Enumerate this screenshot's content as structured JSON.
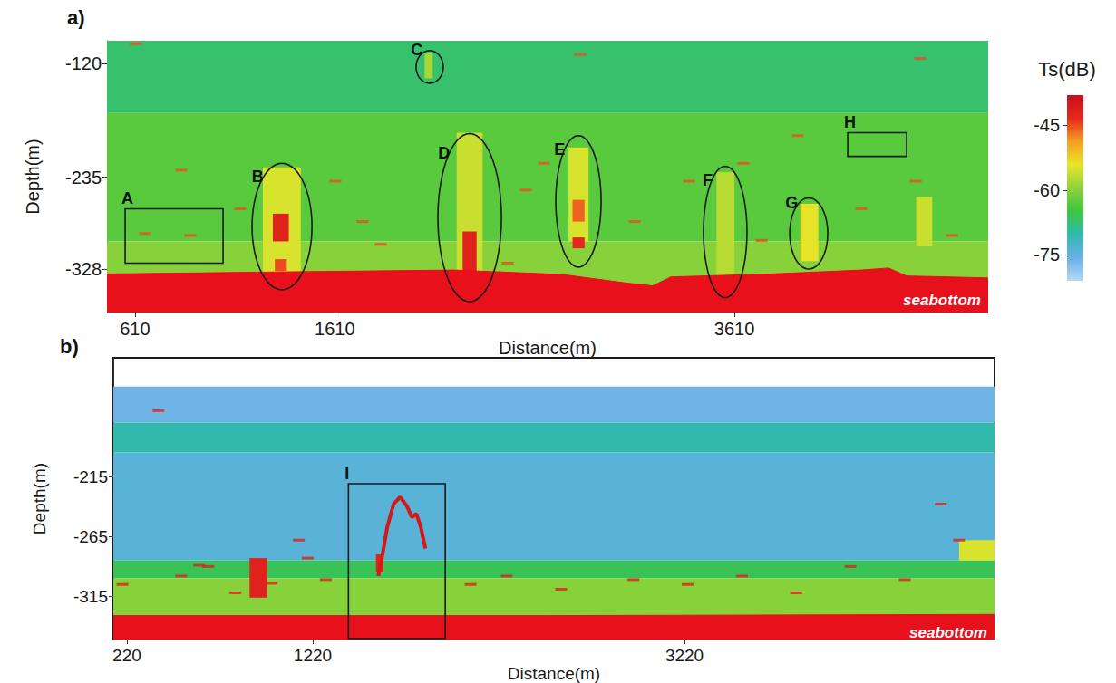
{
  "chart_data": [
    {
      "type": "echogram",
      "title": "a)",
      "x_label": "Distance(m)",
      "y_label": "Depth(m)",
      "xlim": [
        470,
        4880
      ],
      "xticks": [
        610,
        1610,
        3610
      ],
      "ylim": [
        -372,
        -97
      ],
      "yticks": [
        -120,
        -235,
        -328
      ],
      "cells": [
        [
          470,
          4880,
          -170,
          -97,
          -67
        ],
        [
          470,
          4880,
          -300,
          -170,
          -63
        ],
        [
          470,
          4880,
          -372,
          -300,
          -60
        ],
        [
          2060,
          2100,
          -135,
          -110,
          -58
        ],
        [
          1250,
          1440,
          -335,
          -225,
          -55
        ],
        [
          1300,
          1380,
          -300,
          -272,
          -42
        ],
        [
          1310,
          1370,
          -330,
          -318,
          -45
        ],
        [
          2220,
          2350,
          -335,
          -190,
          -56
        ],
        [
          2250,
          2320,
          -335,
          -290,
          -42
        ],
        [
          2780,
          2880,
          -300,
          -205,
          -55
        ],
        [
          2800,
          2860,
          -280,
          -258,
          -46
        ],
        [
          2800,
          2860,
          -307,
          -296,
          -43
        ],
        [
          3520,
          3610,
          -335,
          -230,
          -57
        ],
        [
          3940,
          4030,
          -320,
          -262,
          -54
        ],
        [
          4520,
          4600,
          -305,
          -255,
          -56
        ]
      ],
      "seabottom": {
        "label": "seabottom",
        "x": [
          470,
          1296,
          2203,
          2748,
          3065,
          3201,
          3292,
          3791,
          4245,
          4381,
          4472,
          4880
        ],
        "depth": [
          -333,
          -331,
          -329,
          -333.5,
          -342,
          -345,
          -336,
          -333,
          -329,
          -327,
          -335,
          -337
        ]
      },
      "targets": {
        "x": [
          661,
          887,
          842,
          1137,
          1613,
          1840,
          1749,
          2475,
          2566,
          2657,
          3111,
          3383,
          3746,
          3655,
          3927,
          4245,
          4517,
          4699,
          4540,
          615,
          2838
        ],
        "y": [
          -292,
          -294,
          -228,
          -267,
          -239,
          -303,
          -280,
          -322,
          -248,
          -221,
          -280,
          -239,
          -299,
          -221,
          -193,
          -267,
          -239,
          -294,
          -115,
          -100,
          -111
        ],
        "ts": [
          -45,
          -45,
          -45,
          -45,
          -45,
          -45,
          -45,
          -45,
          -45,
          -45,
          -45,
          -45,
          -45,
          -45,
          -45,
          -45,
          -45,
          -45,
          -45,
          -45,
          -45
        ]
      },
      "regions": [
        {
          "label": "A",
          "shape": "rect",
          "x": [
            561,
            1051
          ],
          "y": [
            -322,
            -267
          ]
        },
        {
          "label": "B",
          "shape": "ellipse",
          "x": [
            1196,
            1496
          ],
          "y": [
            -349,
            -221
          ]
        },
        {
          "label": "C",
          "shape": "ellipse",
          "x": [
            2017,
            2153
          ],
          "y": [
            -140,
            -107
          ]
        },
        {
          "label": "D",
          "shape": "ellipse",
          "x": [
            2126,
            2444
          ],
          "y": [
            -361,
            -191
          ]
        },
        {
          "label": "E",
          "shape": "ellipse",
          "x": [
            2716,
            2943
          ],
          "y": [
            -326,
            -193
          ]
        },
        {
          "label": "F",
          "shape": "ellipse",
          "x": [
            3455,
            3673
          ],
          "y": [
            -357,
            -224
          ]
        },
        {
          "label": "G",
          "shape": "ellipse",
          "x": [
            3887,
            4077
          ],
          "y": [
            -328,
            -256
          ]
        },
        {
          "label": "H",
          "shape": "rect",
          "x": [
            4177,
            4472
          ],
          "y": [
            -214,
            -190
          ]
        }
      ]
    },
    {
      "type": "echogram",
      "title": "b)",
      "x_label": "Distance(m)",
      "y_label": "Depth(m)",
      "xlim": [
        147,
        4888
      ],
      "xticks": [
        220,
        1220,
        3220
      ],
      "ylim": [
        -351,
        -116
      ],
      "yticks": [
        -215,
        -265,
        -315
      ],
      "cells": [
        [
          147,
          4888,
          -170,
          -140,
          -76
        ],
        [
          147,
          4888,
          -195,
          -170,
          -70
        ],
        [
          147,
          4888,
          -285,
          -195,
          -74
        ],
        [
          147,
          4888,
          -300,
          -285,
          -66
        ],
        [
          147,
          4888,
          -351,
          -300,
          -60
        ],
        [
          880,
          975,
          -316,
          -283,
          -42
        ],
        [
          4697,
          4888,
          -285,
          -268,
          -55
        ],
        [
          1560,
          1600,
          -295,
          -280,
          -42
        ]
      ],
      "seabottom": {
        "label": "seabottom",
        "x": [
          147,
          2500,
          4888
        ],
        "depth": [
          -331,
          -331,
          -330
        ]
      },
      "targets": {
        "x": [
          196,
          512,
          658,
          804,
          999,
          1193,
          1290,
          2069,
          2264,
          2556,
          2945,
          3237,
          3529,
          3821,
          4113,
          4405,
          4697,
          4599,
          609,
          1145,
          390
        ],
        "y": [
          -305,
          -298,
          -290,
          -312,
          -304,
          -283,
          -301,
          -305,
          -298,
          -309,
          -301,
          -305,
          -298,
          -312,
          -290,
          -301,
          -268,
          -238,
          -289,
          -268,
          -160
        ],
        "ts": [
          -42,
          -42,
          -42,
          -42,
          -42,
          -42,
          -42,
          -42,
          -42,
          -42,
          -42,
          -42,
          -42,
          -42,
          -42,
          -42,
          -42,
          -42,
          -42,
          -42,
          -42
        ]
      },
      "traces": [
        {
          "x": [
            1573,
            1592,
            1621,
            1655,
            1690,
            1728,
            1753,
            1777,
            1801,
            1826
          ],
          "y": [
            -298,
            -283,
            -257,
            -238,
            -232,
            -240,
            -249,
            -246,
            -257,
            -275
          ],
          "ts": -40
        }
      ],
      "regions": [
        {
          "label": "I",
          "shape": "rect",
          "x": [
            1412,
            1933
          ],
          "y": [
            -350,
            -221
          ]
        }
      ]
    },
    {
      "type": "colorbar",
      "title": "Ts(dB)",
      "ylim": [
        -81,
        -38
      ],
      "yticks": [
        -45,
        -60,
        -75
      ]
    }
  ]
}
